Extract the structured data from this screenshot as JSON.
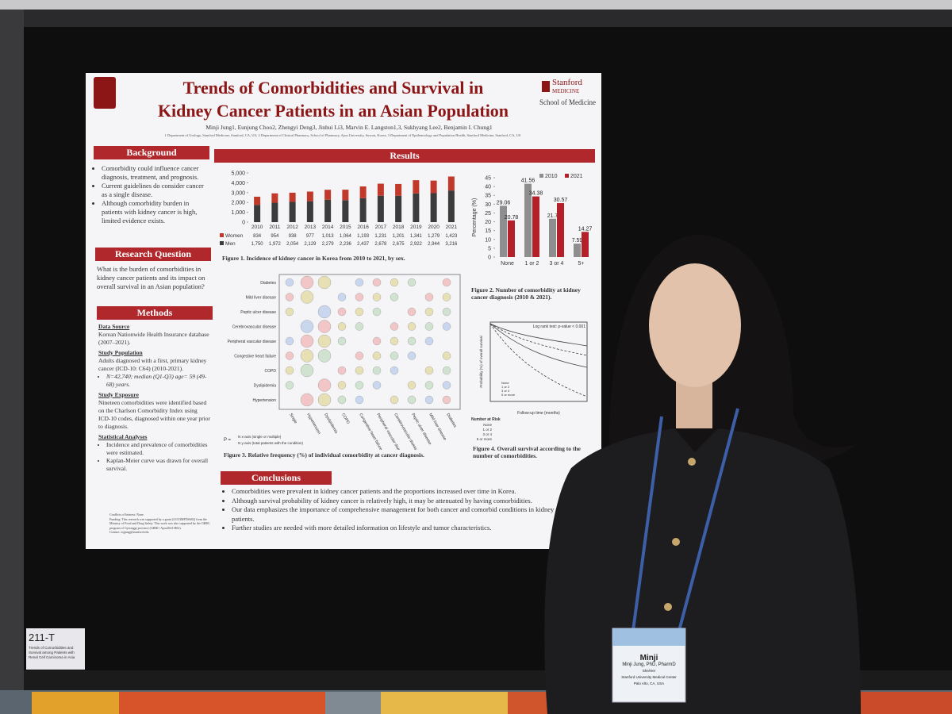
{
  "poster": {
    "title_line1": "Trends of Comorbidities and Survival in",
    "title_line2": "Kidney Cancer Patients in an Asian Population",
    "logo": [
      "Stanford",
      "MEDICINE",
      "School of Medicine"
    ],
    "authors": "Minji Jung1, Eunjung Choo2, Zhengyi Deng3, Jinhui Li3, Marvin E. Langston1,3, Sukhyang Lee2, Benjamin I. Chung1",
    "affiliations": "1 Department of Urology, Stanford Medicine, Stanford, CA, US; 2 Department of Clinical Pharmacy, School of Pharmacy, Ajou University, Suwon, Korea; 3 Department of Epidemiology and Population Health, Stanford Medicine, Stanford, CA, US",
    "background": {
      "heading": "Background",
      "bullets": [
        "Comorbidity could influence cancer diagnosis, treatment, and prognosis.",
        "Current guidelines do consider cancer as a single disease.",
        "Although comorbidity burden in patients with kidney cancer is high, limited evidence exists."
      ]
    },
    "research_question": {
      "heading": "Research Question",
      "text": "What is the burden of comorbidities in kidney cancer patients and its impact on overall survival in an Asian population?"
    },
    "methods": {
      "heading": "Methods",
      "sections": [
        {
          "title": "Data Source",
          "text": "Korean Nationwide Health Insurance database (2007–2021)."
        },
        {
          "title": "Study Population",
          "text": "Adults diagnosed with a first, primary kidney cancer (ICD-10: C64) (2010-2021).",
          "bullet": "N=42,740; median (Q1-Q3) age= 59 (49-68) years."
        },
        {
          "title": "Study Exposure",
          "text": "Nineteen comorbidities were identified based on the Charlson Comorbidity Index using ICD-10 codes, diagnosed within one year prior to diagnosis."
        },
        {
          "title": "Statistical Analyses",
          "bullets": [
            "Incidence and prevalence of comorbidities were estimated.",
            "Kaplan-Meier curve was drawn for overall survival."
          ]
        }
      ]
    },
    "footnote": [
      "Conflicts of Interest: None.",
      "Funding: This research was supported by a grant (21153MFDS602) from the Ministry of Food and Drug Safety. This work was also supported by the GRRC program of Gyeonggi province (GRRC-Ajou2023-B02).",
      "Contact: mjjung@stanford.edu"
    ],
    "results_heading": "Results",
    "fig1_caption": "Figure 1. Incidence of kidney cancer in Korea from 2010 to 2021, by sex.",
    "fig2_caption": "Figure 2. Number of comorbidity at kidney cancer diagnosis (2010 & 2021).",
    "fig3": {
      "caption": "Figure 3. Relative frequency (%) of individual comorbidity at cancer diagnosis.",
      "rows": [
        "Diabetes",
        "Mild liver disease",
        "Peptic ulcer disease",
        "Cerebrovascular disease",
        "Peripheral vascular disease",
        "Congestive heart failure",
        "COPD",
        "Dyslipidemia",
        "Hypertension"
      ],
      "columns": [
        "Single",
        "Hypertension",
        "Dyslipidemia",
        "COPD",
        "Congestive heart failure",
        "Peripheral vascular disease",
        "Cerebrovascular disease",
        "Peptic ulcer disease",
        "Mild liver disease",
        "Diabetes"
      ],
      "formula_num": "N x-axis (single or multiple)",
      "formula_den": "N y-axis (total patients with the condition)",
      "formula_p": "P ="
    },
    "fig4": {
      "caption": "Figure 4. Overall survival according to the number of comorbidities.",
      "test": "Log rank test: p-value < 0.001",
      "ylabel": "Probability (%) of overall survival",
      "xlabel": "Follow-up time (months)",
      "legend": [
        "None",
        "1 or 2",
        "3 or 4",
        "5 or more"
      ],
      "risk": "Number at Risk"
    },
    "conclusions": {
      "heading": "Conclusions",
      "bullets": [
        "Comorbidities were prevalent in kidney cancer patients and the proportions increased over time in Korea.",
        "Although survival probability of kidney cancer is relatively high, it may be attenuated by having comorbidities.",
        "Our data emphasizes the importance of comprehensive management for both cancer and comorbid conditions in kidney cancer patients.",
        "Further studies are needed with more detailed information on lifestyle and tumor characteristics."
      ]
    }
  },
  "sign": {
    "number": "211-T",
    "text": "Trends of Comorbidities and Survival among Patients with Renal Cell Carcinoma in Asia"
  },
  "badge": {
    "name": "Minji",
    "full": "Minji Jung, PhD, PharmD",
    "pronoun": "She/Her",
    "org": "Stanford University Medical Center",
    "place": "Palo Alto, CA, USA"
  },
  "chart_data": [
    {
      "type": "stacked-bar",
      "categories": [
        "2010",
        "2011",
        "2012",
        "2013",
        "2014",
        "2015",
        "2016",
        "2017",
        "2018",
        "2019",
        "2020",
        "2021"
      ],
      "series": [
        {
          "name": "Men",
          "color": "#3b3b3b",
          "values": [
            1750,
            1972,
            2054,
            2129,
            2279,
            2236,
            2437,
            2678,
            2675,
            2922,
            2944,
            3216
          ],
          "value_labels": [
            "1,750",
            "1,972",
            "2,054",
            "2,129",
            "2,279",
            "2,236",
            "2,437",
            "2,678",
            "2,675",
            "2,922",
            "2,944",
            "3,216"
          ]
        },
        {
          "name": "Women",
          "color": "#c0392b",
          "values": [
            834,
            954,
            938,
            977,
            1013,
            1064,
            1193,
            1231,
            1201,
            1341,
            1279,
            1423
          ],
          "value_labels": [
            "834",
            "954",
            "938",
            "977",
            "1,013",
            "1,064",
            "1,193",
            "1,231",
            "1,201",
            "1,341",
            "1,279",
            "1,423"
          ]
        }
      ],
      "ylim": [
        0,
        5000
      ],
      "yticks": [
        0,
        {
          "value": 1000,
          "label": "1,000"
        },
        {
          "value": 2000,
          "label": "2,000"
        },
        {
          "value": 3000,
          "label": "3,000"
        },
        {
          "value": 4000,
          "label": "4,000"
        },
        {
          "value": 5000,
          "label": "5,000"
        }
      ]
    },
    {
      "type": "grouped-bar",
      "categories": [
        "None",
        "1 or 2",
        "3 or 4",
        "5+"
      ],
      "ylabel": "Percentage (%)",
      "series": [
        {
          "name": "2010",
          "color": "#8e8e8e",
          "values": [
            29.06,
            41.56,
            21.7,
            7.59
          ]
        },
        {
          "name": "2021",
          "color": "#b3202a",
          "values": [
            20.78,
            34.38,
            30.57,
            14.27
          ]
        }
      ],
      "ylim": [
        0,
        45
      ],
      "yticks": [
        0,
        5,
        10,
        15,
        20,
        25,
        30,
        35,
        40,
        45
      ]
    }
  ]
}
